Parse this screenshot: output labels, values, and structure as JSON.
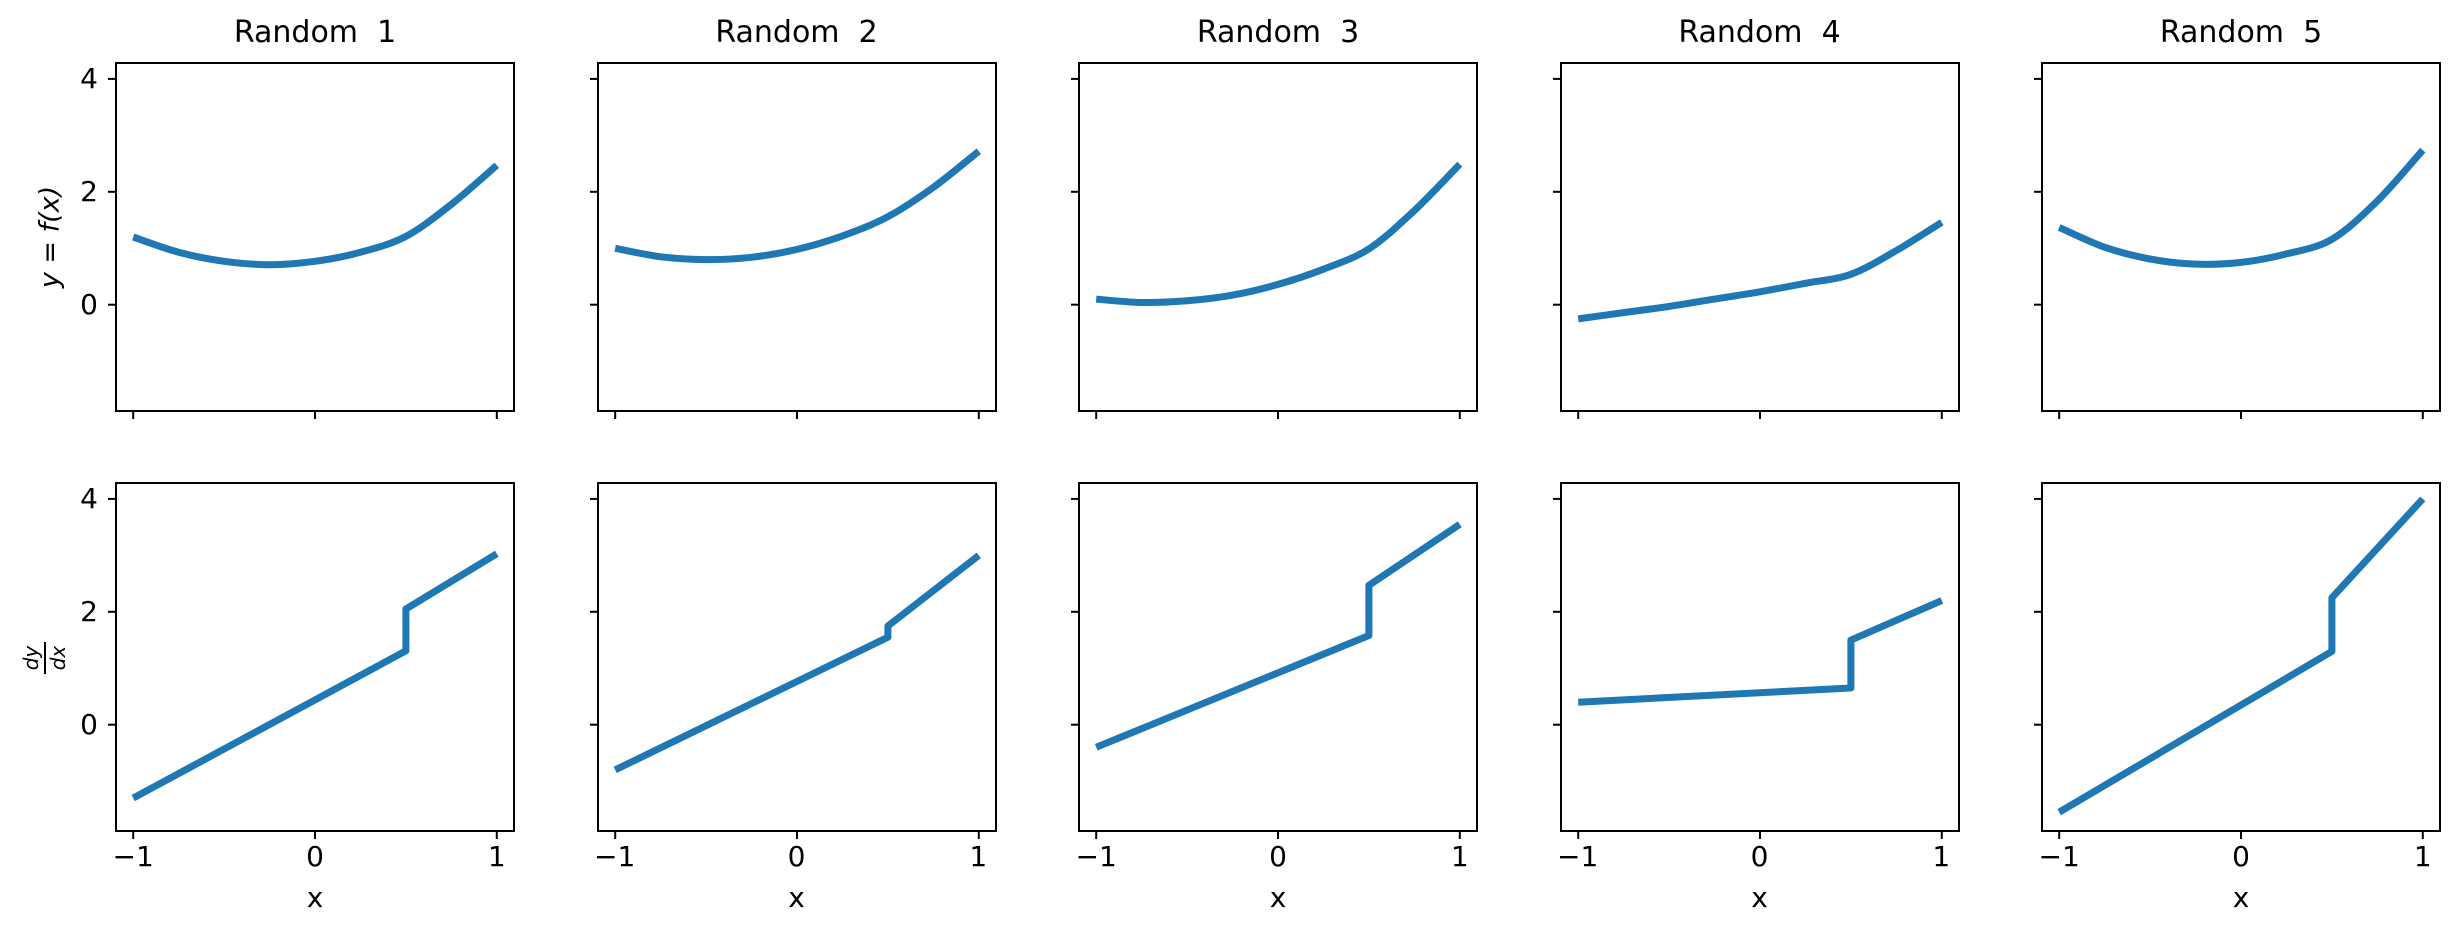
{
  "figure": {
    "background": "#ffffff",
    "line_color": "#1f77b4",
    "axis_color": "#000000",
    "line_width": 7,
    "xlabel": "x",
    "rows": [
      {
        "ylabel": "y = f(x)",
        "ylabel_type": "italic-text"
      },
      {
        "ylabel_numerator": "dy",
        "ylabel_denominator": "dx",
        "ylabel_type": "fraction"
      }
    ]
  },
  "chart_data": [
    {
      "id": "function-1",
      "type": "line",
      "row": 0,
      "col": 0,
      "smooth": true,
      "title": "Random  1",
      "xlabel": "",
      "ylabel": "y = f(x)",
      "x": [
        -1,
        -0.75,
        -0.5,
        -0.25,
        0,
        0.25,
        0.5,
        0.75,
        1
      ],
      "y": [
        1.2,
        0.93,
        0.77,
        0.71,
        0.77,
        0.93,
        1.21,
        1.78,
        2.47
      ],
      "xlim": [
        -1.1,
        1.1
      ],
      "ylim": [
        -1.9,
        4.3
      ],
      "xticks": [
        -1,
        0,
        1
      ],
      "xtick_labels": [
        "−1",
        "0",
        "1"
      ],
      "yticks": [
        4,
        2,
        0
      ],
      "ytick_labels": [
        "4",
        "2",
        "0"
      ],
      "show_xtick_labels": false,
      "show_ytick_labels": true,
      "grid": false
    },
    {
      "id": "function-2",
      "type": "line",
      "row": 0,
      "col": 1,
      "smooth": true,
      "title": "Random  2",
      "xlabel": "",
      "ylabel": "",
      "x": [
        -1,
        -0.75,
        -0.5,
        -0.25,
        0,
        0.25,
        0.5,
        0.75,
        1
      ],
      "y": [
        1.0,
        0.85,
        0.8,
        0.84,
        0.98,
        1.22,
        1.56,
        2.08,
        2.72
      ],
      "xlim": [
        -1.1,
        1.1
      ],
      "ylim": [
        -1.9,
        4.3
      ],
      "xticks": [
        -1,
        0,
        1
      ],
      "xtick_labels": [
        "−1",
        "0",
        "1"
      ],
      "yticks": [
        4,
        2,
        0
      ],
      "ytick_labels": [
        "4",
        "2",
        "0"
      ],
      "show_xtick_labels": false,
      "show_ytick_labels": false,
      "grid": false
    },
    {
      "id": "function-3",
      "type": "line",
      "row": 0,
      "col": 2,
      "smooth": true,
      "title": "Random  3",
      "xlabel": "",
      "ylabel": "",
      "x": [
        -1,
        -0.75,
        -0.5,
        -0.25,
        0,
        0.25,
        0.5,
        0.75,
        1
      ],
      "y": [
        0.1,
        0.04,
        0.07,
        0.17,
        0.36,
        0.63,
        0.99,
        1.67,
        2.49
      ],
      "xlim": [
        -1.1,
        1.1
      ],
      "ylim": [
        -1.9,
        4.3
      ],
      "xticks": [
        -1,
        0,
        1
      ],
      "xtick_labels": [
        "−1",
        "0",
        "1"
      ],
      "yticks": [
        4,
        2,
        0
      ],
      "ytick_labels": [
        "4",
        "2",
        "0"
      ],
      "show_xtick_labels": false,
      "show_ytick_labels": false,
      "grid": false
    },
    {
      "id": "function-4",
      "type": "line",
      "row": 0,
      "col": 3,
      "smooth": true,
      "title": "Random  4",
      "xlabel": "",
      "ylabel": "",
      "x": [
        -1,
        -0.75,
        -0.5,
        -0.25,
        0,
        0.25,
        0.5,
        0.75,
        1
      ],
      "y": [
        -0.25,
        -0.14,
        -0.03,
        0.1,
        0.23,
        0.38,
        0.54,
        0.96,
        1.46
      ],
      "xlim": [
        -1.1,
        1.1
      ],
      "ylim": [
        -1.9,
        4.3
      ],
      "xticks": [
        -1,
        0,
        1
      ],
      "xtick_labels": [
        "−1",
        "0",
        "1"
      ],
      "yticks": [
        4,
        2,
        0
      ],
      "ytick_labels": [
        "4",
        "2",
        "0"
      ],
      "show_xtick_labels": false,
      "show_ytick_labels": false,
      "grid": false
    },
    {
      "id": "function-5",
      "type": "line",
      "row": 0,
      "col": 4,
      "smooth": true,
      "title": "Random  5",
      "xlabel": "",
      "ylabel": "",
      "x": [
        -1,
        -0.75,
        -0.5,
        -0.25,
        0,
        0.25,
        0.5,
        0.75,
        1
      ],
      "y": [
        1.37,
        1.02,
        0.81,
        0.72,
        0.75,
        0.9,
        1.16,
        1.84,
        2.74
      ],
      "xlim": [
        -1.1,
        1.1
      ],
      "ylim": [
        -1.9,
        4.3
      ],
      "xticks": [
        -1,
        0,
        1
      ],
      "xtick_labels": [
        "−1",
        "0",
        "1"
      ],
      "yticks": [
        4,
        2,
        0
      ],
      "ytick_labels": [
        "4",
        "2",
        "0"
      ],
      "show_xtick_labels": false,
      "show_ytick_labels": false,
      "grid": false
    },
    {
      "id": "derivative-1",
      "type": "line",
      "row": 1,
      "col": 0,
      "smooth": false,
      "title": "",
      "xlabel": "x",
      "ylabel": "dy/dx",
      "x": [
        -1,
        0.5,
        0.5,
        1
      ],
      "y": [
        -1.3,
        1.31,
        2.05,
        3.03
      ],
      "xlim": [
        -1.1,
        1.1
      ],
      "ylim": [
        -1.9,
        4.3
      ],
      "xticks": [
        -1,
        0,
        1
      ],
      "xtick_labels": [
        "−1",
        "0",
        "1"
      ],
      "yticks": [
        4,
        2,
        0
      ],
      "ytick_labels": [
        "4",
        "2",
        "0"
      ],
      "show_xtick_labels": true,
      "show_ytick_labels": true,
      "grid": false
    },
    {
      "id": "derivative-2",
      "type": "line",
      "row": 1,
      "col": 1,
      "smooth": false,
      "title": "",
      "xlabel": "x",
      "ylabel": "",
      "x": [
        -1,
        0.5,
        0.5,
        1
      ],
      "y": [
        -0.8,
        1.55,
        1.75,
        3.0
      ],
      "xlim": [
        -1.1,
        1.1
      ],
      "ylim": [
        -1.9,
        4.3
      ],
      "xticks": [
        -1,
        0,
        1
      ],
      "xtick_labels": [
        "−1",
        "0",
        "1"
      ],
      "yticks": [
        4,
        2,
        0
      ],
      "ytick_labels": [
        "4",
        "2",
        "0"
      ],
      "show_xtick_labels": true,
      "show_ytick_labels": false,
      "grid": false
    },
    {
      "id": "derivative-3",
      "type": "line",
      "row": 1,
      "col": 2,
      "smooth": false,
      "title": "",
      "xlabel": "x",
      "ylabel": "",
      "x": [
        -1,
        0.5,
        0.5,
        1
      ],
      "y": [
        -0.4,
        1.58,
        2.47,
        3.55
      ],
      "xlim": [
        -1.1,
        1.1
      ],
      "ylim": [
        -1.9,
        4.3
      ],
      "xticks": [
        -1,
        0,
        1
      ],
      "xtick_labels": [
        "−1",
        "0",
        "1"
      ],
      "yticks": [
        4,
        2,
        0
      ],
      "ytick_labels": [
        "4",
        "2",
        "0"
      ],
      "show_xtick_labels": true,
      "show_ytick_labels": false,
      "grid": false
    },
    {
      "id": "derivative-4",
      "type": "line",
      "row": 1,
      "col": 3,
      "smooth": false,
      "title": "",
      "xlabel": "x",
      "ylabel": "",
      "x": [
        -1,
        0.5,
        0.5,
        1
      ],
      "y": [
        0.4,
        0.65,
        1.5,
        2.2
      ],
      "xlim": [
        -1.1,
        1.1
      ],
      "ylim": [
        -1.9,
        4.3
      ],
      "xticks": [
        -1,
        0,
        1
      ],
      "xtick_labels": [
        "−1",
        "0",
        "1"
      ],
      "yticks": [
        4,
        2,
        0
      ],
      "ytick_labels": [
        "4",
        "2",
        "0"
      ],
      "show_xtick_labels": true,
      "show_ytick_labels": false,
      "grid": false
    },
    {
      "id": "derivative-5",
      "type": "line",
      "row": 1,
      "col": 4,
      "smooth": false,
      "title": "",
      "xlabel": "x",
      "ylabel": "",
      "x": [
        -1,
        0.5,
        0.5,
        1
      ],
      "y": [
        -1.55,
        1.3,
        2.25,
        4.0
      ],
      "xlim": [
        -1.1,
        1.1
      ],
      "ylim": [
        -1.9,
        4.3
      ],
      "xticks": [
        -1,
        0,
        1
      ],
      "xtick_labels": [
        "−1",
        "0",
        "1"
      ],
      "yticks": [
        4,
        2,
        0
      ],
      "ytick_labels": [
        "4",
        "2",
        "0"
      ],
      "show_xtick_labels": true,
      "show_ytick_labels": false,
      "grid": false
    }
  ]
}
